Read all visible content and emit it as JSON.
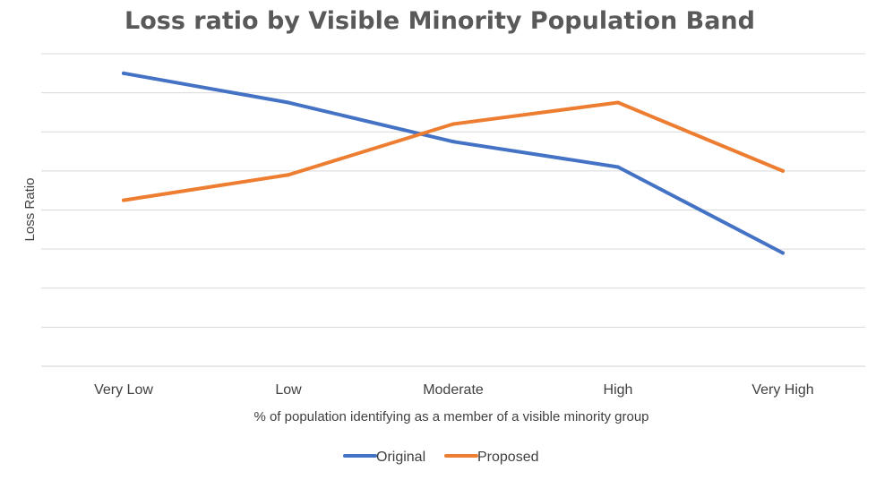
{
  "chart_data": {
    "type": "line",
    "title": "Loss ratio by Visible Minority Population Band",
    "xlabel": "% of population identifying as a member of a visible minority group",
    "ylabel": "Loss Ratio",
    "categories": [
      "Very Low",
      "Low",
      "Moderate",
      "High",
      "Very High"
    ],
    "ylim": [
      0,
      8
    ],
    "y_tick_labels_shown": false,
    "grid": true,
    "legend_position": "bottom",
    "series": [
      {
        "name": "Original",
        "color": "#4472C4",
        "values": [
          7.5,
          6.75,
          5.75,
          5.1,
          2.9
        ]
      },
      {
        "name": "Proposed",
        "color": "#ED7D31",
        "values": [
          4.25,
          4.9,
          6.2,
          6.75,
          5.0
        ]
      }
    ]
  }
}
